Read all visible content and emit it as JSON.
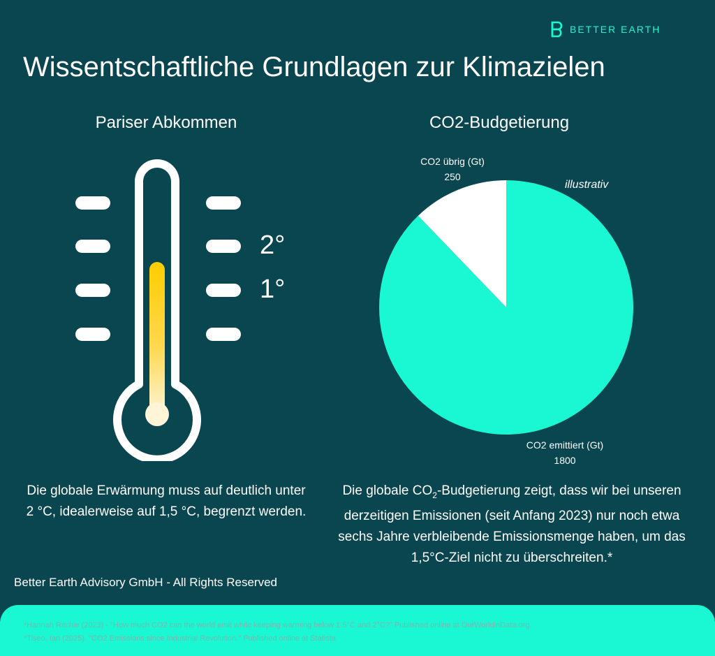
{
  "brand": {
    "name": "BETTER EARTH",
    "accent": "#19f7d3",
    "icon": "logo-b-icon"
  },
  "title": "Wissentschaftliche Grundlagen zur Klimazielen",
  "left": {
    "heading": "Pariser Abkommen",
    "marks": {
      "two": "2°",
      "one": "1°"
    },
    "fill_level_degrees": 1.3,
    "text": "Die globale Erwärmung muss auf deutlich unter 2 °C, idealerweise auf 1,5 °C, begrenzt werden."
  },
  "right": {
    "heading": "CO2-Budgetierung",
    "illustrative": "illustrativ",
    "text_before": "Die globale CO",
    "text_sub": "2",
    "text_after": "-Budgetierung zeigt, dass wir bei unseren derzeitigen Emissionen (seit Anfang 2023) nur noch etwa sechs Jahre verbleibende Emissionsmenge haben, um das 1,5°C-Ziel nicht zu überschreiten.*"
  },
  "chart_data": {
    "type": "pie",
    "title": "CO2-Budgetierung",
    "slices": [
      {
        "label": "CO2 übrig (Gt)",
        "value": 250,
        "value_text": "250",
        "color": "#ffffff"
      },
      {
        "label": "CO2 emittiert (Gt)",
        "value": 1800,
        "value_text": "1800",
        "color": "#19f7d3"
      }
    ]
  },
  "copyright": "Better Earth Advisory GmbH - All Rights Reserved",
  "footnotes": [
    "*Hannah Ritchie (2023) - \"How much CO2 can the world emit while keeping warming below 1.5°C and 2°C?\" Published online at OurWorldinData.org.",
    "*Tiseo, Ian (2025). \"CO2 Emissions since Industrial Revolution.\" Published online at Statista"
  ],
  "colors": {
    "background": "#0a4650",
    "accent": "#19f7d3",
    "thermometer_fill": "#ffcc00"
  }
}
